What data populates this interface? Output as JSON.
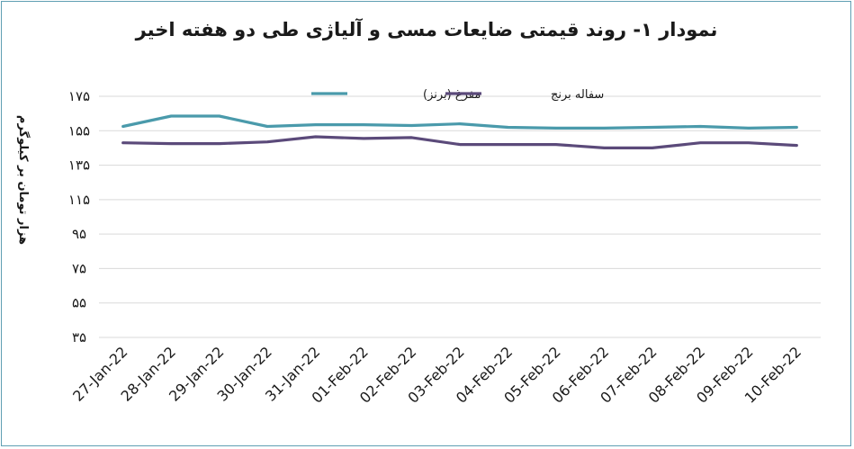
{
  "chart_data": {
    "type": "line",
    "title": "نمودار ۱- روند قیمتی ضایعات مسی و آلیاژی طی دو هفته اخیر",
    "ylabel": "هزار تومان بر کیلوگرم",
    "xlabel": "",
    "ylim": [
      35,
      175
    ],
    "yticks": [
      35,
      55,
      75,
      95,
      115,
      135,
      155,
      175
    ],
    "ytick_labels": [
      "۳۵",
      "۵۵",
      "۷۵",
      "۹۵",
      "۱۱۵",
      "۱۳۵",
      "۱۵۵",
      "۱۷۵"
    ],
    "grid": true,
    "legend_position": "top-center",
    "categories": [
      "27-Jan-22",
      "28-Jan-22",
      "29-Jan-22",
      "30-Jan-22",
      "31-Jan-22",
      "01-Feb-22",
      "02-Feb-22",
      "03-Feb-22",
      "04-Feb-22",
      "05-Feb-22",
      "06-Feb-22",
      "07-Feb-22",
      "08-Feb-22",
      "09-Feb-22",
      "10-Feb-22"
    ],
    "series": [
      {
        "name": "مفرغ (برنز)",
        "color": "#4a9aab",
        "values": [
          157.5,
          163.5,
          163.5,
          157.5,
          158.5,
          158.5,
          158,
          159,
          157,
          156.5,
          156.5,
          157,
          157.5,
          156.5,
          157
        ]
      },
      {
        "name": "سفاله برنج",
        "color": "#5b4a7a",
        "values": [
          148,
          147.5,
          147.5,
          148.5,
          151.5,
          150.5,
          151,
          147,
          147,
          147,
          145,
          145,
          148,
          148,
          146.5
        ]
      }
    ]
  }
}
